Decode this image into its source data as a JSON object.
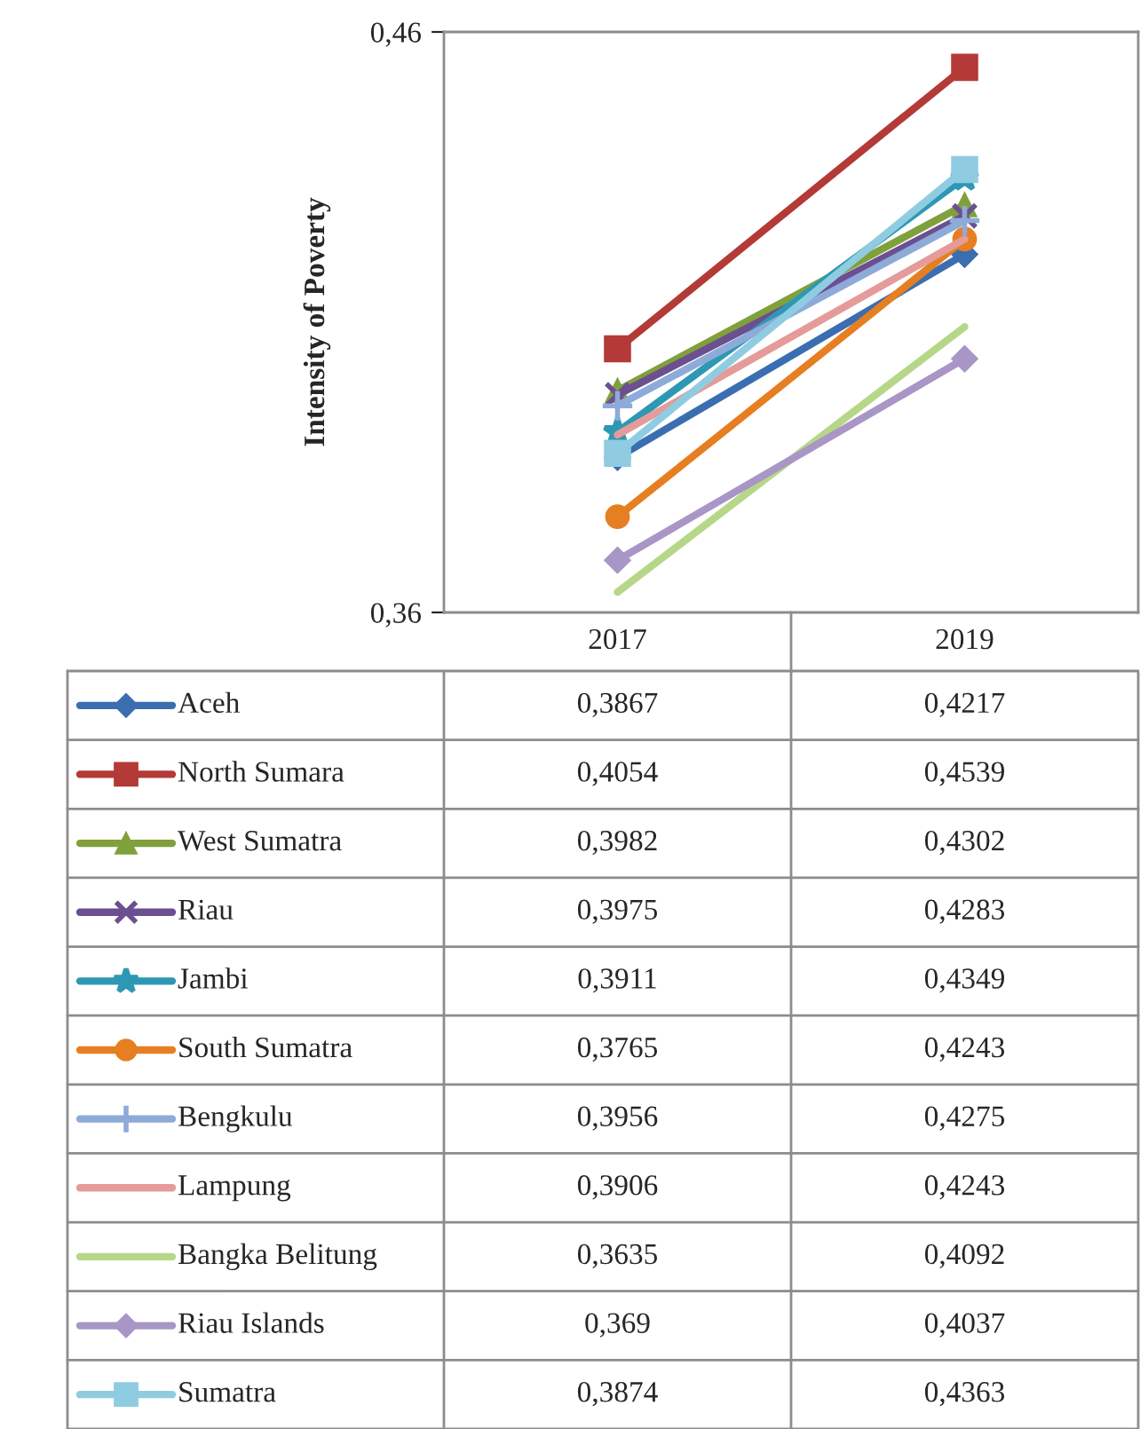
{
  "chart_data": {
    "type": "line",
    "ylabel": "Intensity of Poverty",
    "categories": [
      "2017",
      "2019"
    ],
    "ylim": [
      0.36,
      0.46
    ],
    "yticks": [
      {
        "value": 0.46,
        "label": "0,46"
      },
      {
        "value": 0.36,
        "label": "0,36"
      }
    ],
    "legend": "bottom",
    "series": [
      {
        "name": "Aceh",
        "color": "#3b6eb0",
        "marker": "diamond",
        "values": [
          0.3867,
          0.4217
        ],
        "value_labels": [
          "0,3867",
          "0,4217"
        ]
      },
      {
        "name": "North Sumara",
        "color": "#b33a37",
        "marker": "square",
        "values": [
          0.4054,
          0.4539
        ],
        "value_labels": [
          "0,4054",
          "0,4539"
        ]
      },
      {
        "name": "West Sumatra",
        "color": "#80a03c",
        "marker": "triangle",
        "values": [
          0.3982,
          0.4302
        ],
        "value_labels": [
          "0,3982",
          "0,4302"
        ]
      },
      {
        "name": "Riau",
        "color": "#6b4f90",
        "marker": "cross",
        "values": [
          0.3975,
          0.4283
        ],
        "value_labels": [
          "0,3975",
          "0,4283"
        ]
      },
      {
        "name": "Jambi",
        "color": "#2e98b4",
        "marker": "star",
        "values": [
          0.3911,
          0.4349
        ],
        "value_labels": [
          "0,3911",
          "0,4349"
        ]
      },
      {
        "name": "South Sumatra",
        "color": "#e67f22",
        "marker": "circle",
        "values": [
          0.3765,
          0.4243
        ],
        "value_labels": [
          "0,3765",
          "0,4243"
        ]
      },
      {
        "name": "Bengkulu",
        "color": "#8eaad8",
        "marker": "plus",
        "values": [
          0.3956,
          0.4275
        ],
        "value_labels": [
          "0,3956",
          "0,4275"
        ]
      },
      {
        "name": "Lampung",
        "color": "#e59b99",
        "marker": "none",
        "values": [
          0.3906,
          0.4243
        ],
        "value_labels": [
          "0,3906",
          "0,4243"
        ]
      },
      {
        "name": "Bangka Belitung",
        "color": "#b6d788",
        "marker": "none",
        "values": [
          0.3635,
          0.4092
        ],
        "value_labels": [
          "0,3635",
          "0,4092"
        ]
      },
      {
        "name": "Riau Islands",
        "color": "#a996c7",
        "marker": "diamond",
        "values": [
          0.369,
          0.4037
        ],
        "value_labels": [
          "0,369",
          "0,4037"
        ]
      },
      {
        "name": "Sumatra",
        "color": "#90cce1",
        "marker": "square",
        "values": [
          0.3874,
          0.4363
        ],
        "value_labels": [
          "0,3874",
          "0,4363"
        ]
      }
    ]
  }
}
